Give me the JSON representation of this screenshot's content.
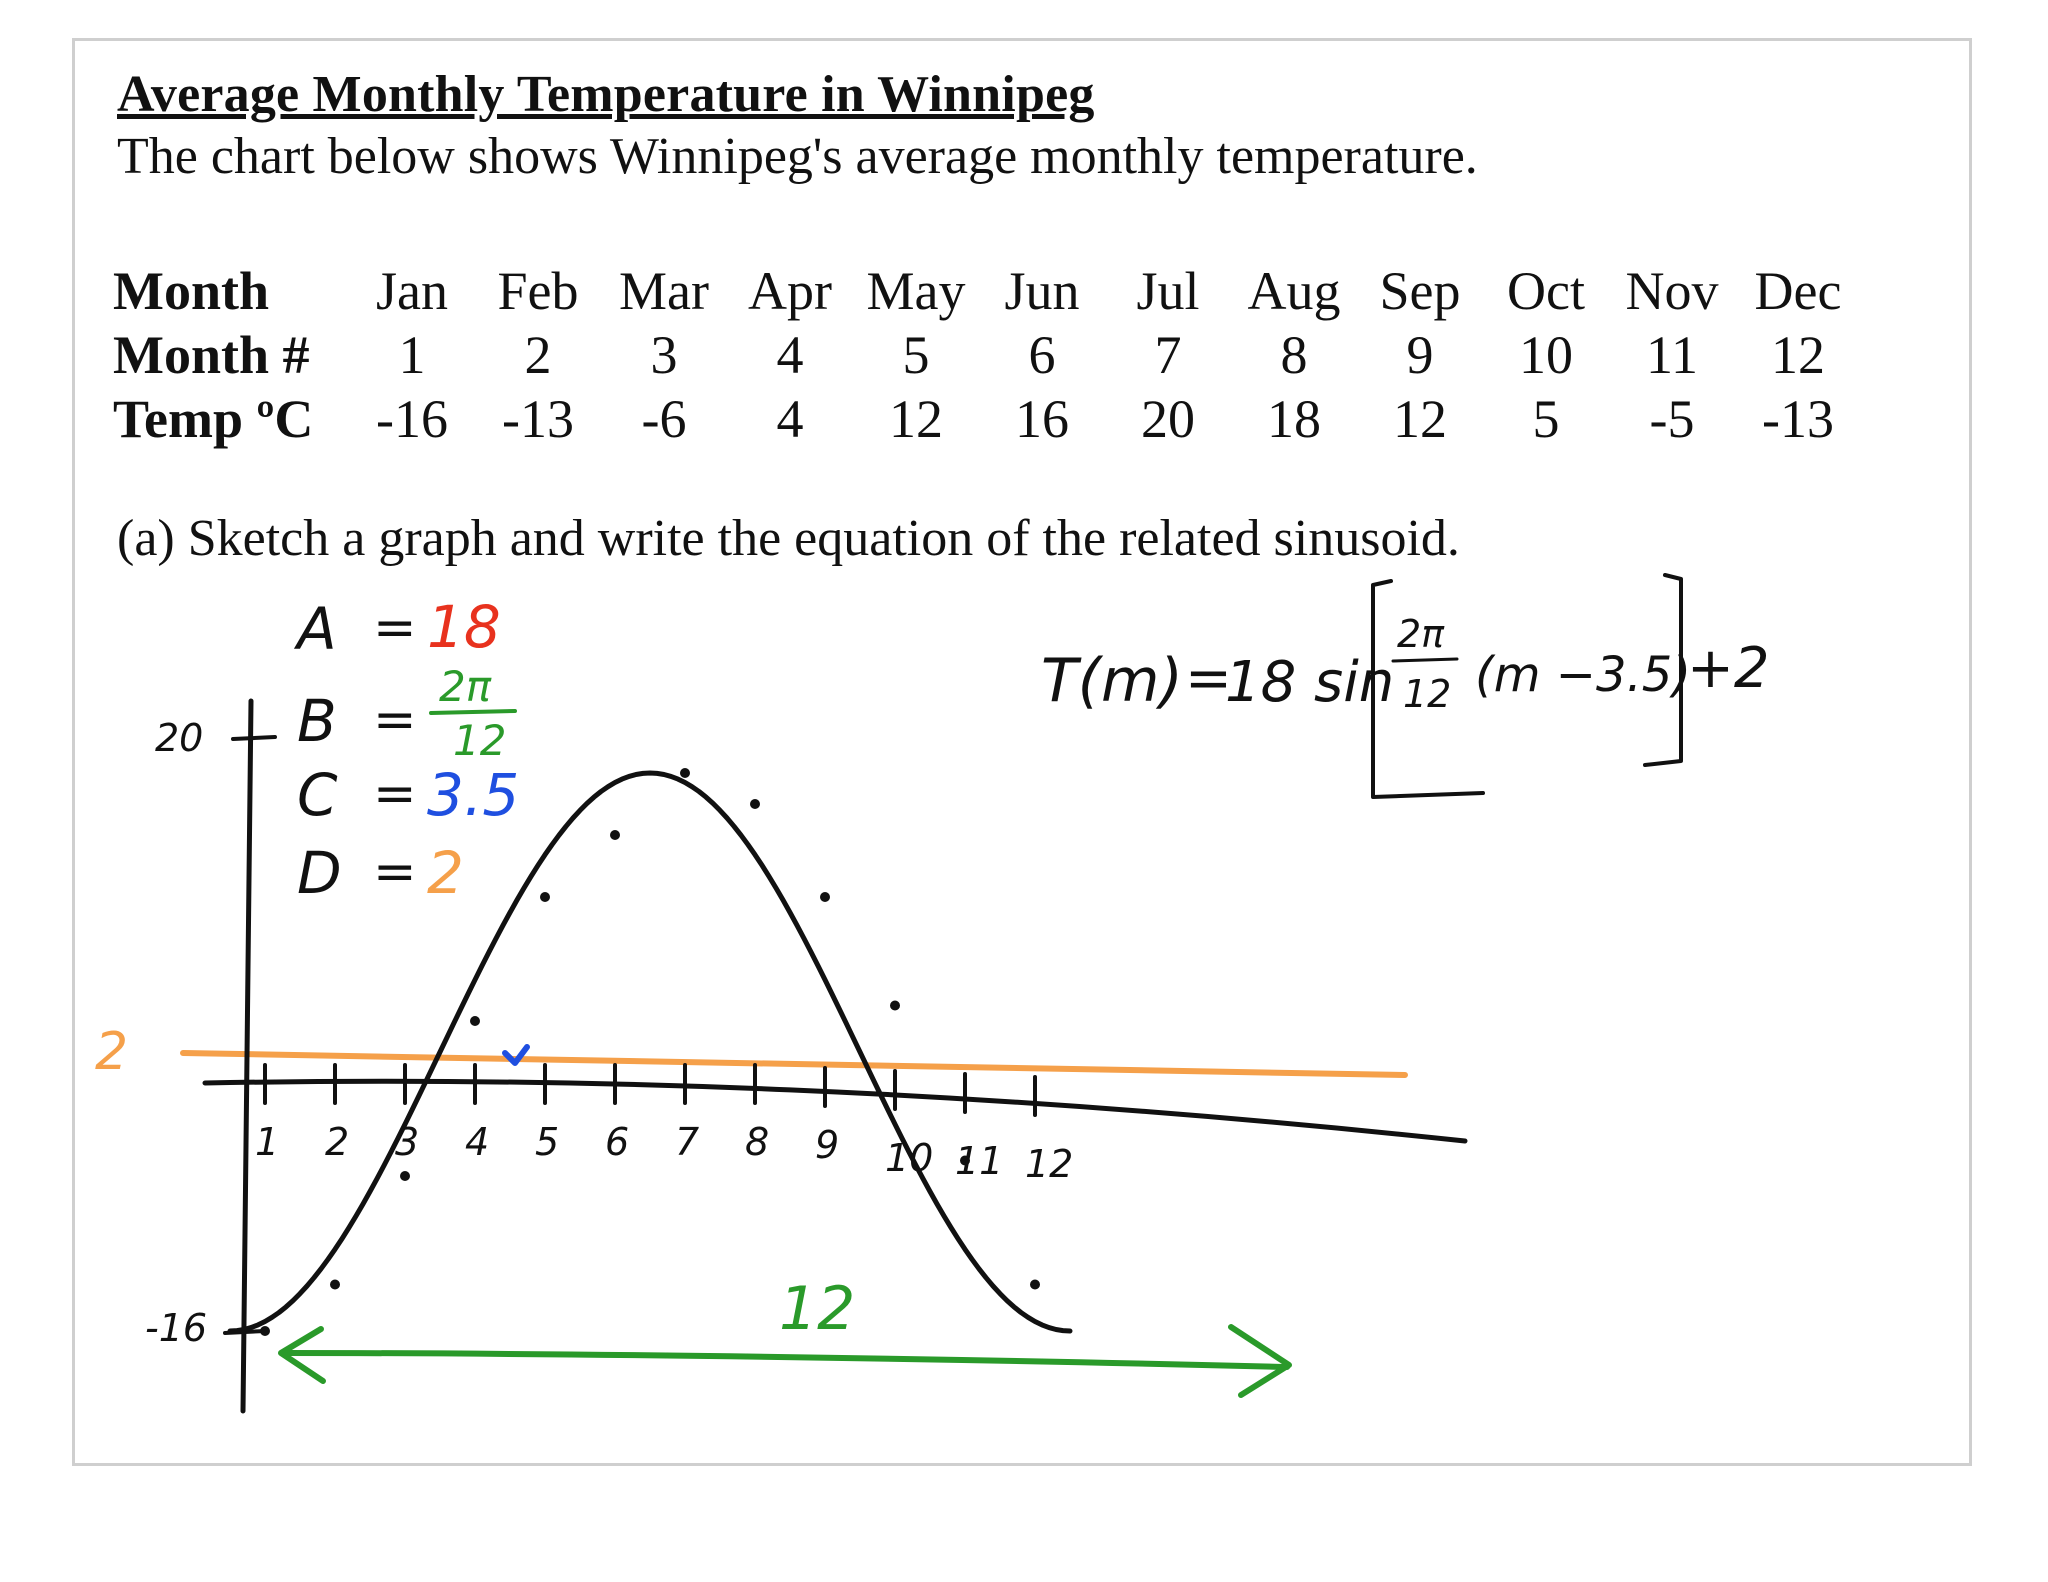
{
  "doc": {
    "title": "Average Monthly Temperature in Winnipeg",
    "intro": "The chart below shows Winnipeg's average monthly temperature.",
    "table": {
      "row_heads": [
        "Month",
        "Month #",
        "Temp ºC"
      ],
      "months": [
        "Jan",
        "Feb",
        "Mar",
        "Apr",
        "May",
        "Jun",
        "Jul",
        "Aug",
        "Sep",
        "Oct",
        "Nov",
        "Dec"
      ],
      "numbers": [
        "1",
        "2",
        "3",
        "4",
        "5",
        "6",
        "7",
        "8",
        "9",
        "10",
        "11",
        "12"
      ],
      "temps": [
        "-16",
        "-13",
        "-6",
        "4",
        "12",
        "16",
        "20",
        "18",
        "12",
        "5",
        "-5",
        "-13"
      ]
    },
    "question": "(a) Sketch a graph and write the equation of the related sinusoid."
  },
  "annotations": {
    "params": [
      {
        "name": "A",
        "eq": "=",
        "value": "18",
        "color": "#e8321e"
      },
      {
        "name": "B",
        "eq": "=",
        "value_num": "2π",
        "value_den": "12",
        "color": "#2a9a2a"
      },
      {
        "name": "C",
        "eq": "=",
        "value": "3.5",
        "color": "#1f4fe0"
      },
      {
        "name": "D",
        "eq": "=",
        "value": "2",
        "color": "#f5a04a"
      }
    ],
    "y_labels": {
      "top": "20",
      "midline": "2",
      "bottom": "-16"
    },
    "x_ticks": [
      "1",
      "2",
      "3",
      "4",
      "5",
      "6",
      "7",
      "8",
      "9",
      "10",
      "11",
      "12"
    ],
    "period_label": "12",
    "equation": {
      "lhs": "T(m)",
      "eq": "=",
      "amp": "18 sin",
      "frac_num": "2π",
      "frac_den": "12",
      "shift": "(m −3.5)",
      "tail": "+2"
    },
    "colors": {
      "ink": "#111111",
      "amplitude": "#e8321e",
      "period": "#2a9a2a",
      "shift": "#1f4fe0",
      "midline": "#f5a04a"
    }
  },
  "chart_data": {
    "type": "scatter",
    "x": [
      1,
      2,
      3,
      4,
      5,
      6,
      7,
      8,
      9,
      10,
      11,
      12
    ],
    "y": [
      -16,
      -13,
      -6,
      4,
      12,
      16,
      20,
      18,
      12,
      5,
      -5,
      -13
    ],
    "model": {
      "A": 18,
      "B": "2π/12",
      "C": 3.5,
      "D": 2
    }
  }
}
